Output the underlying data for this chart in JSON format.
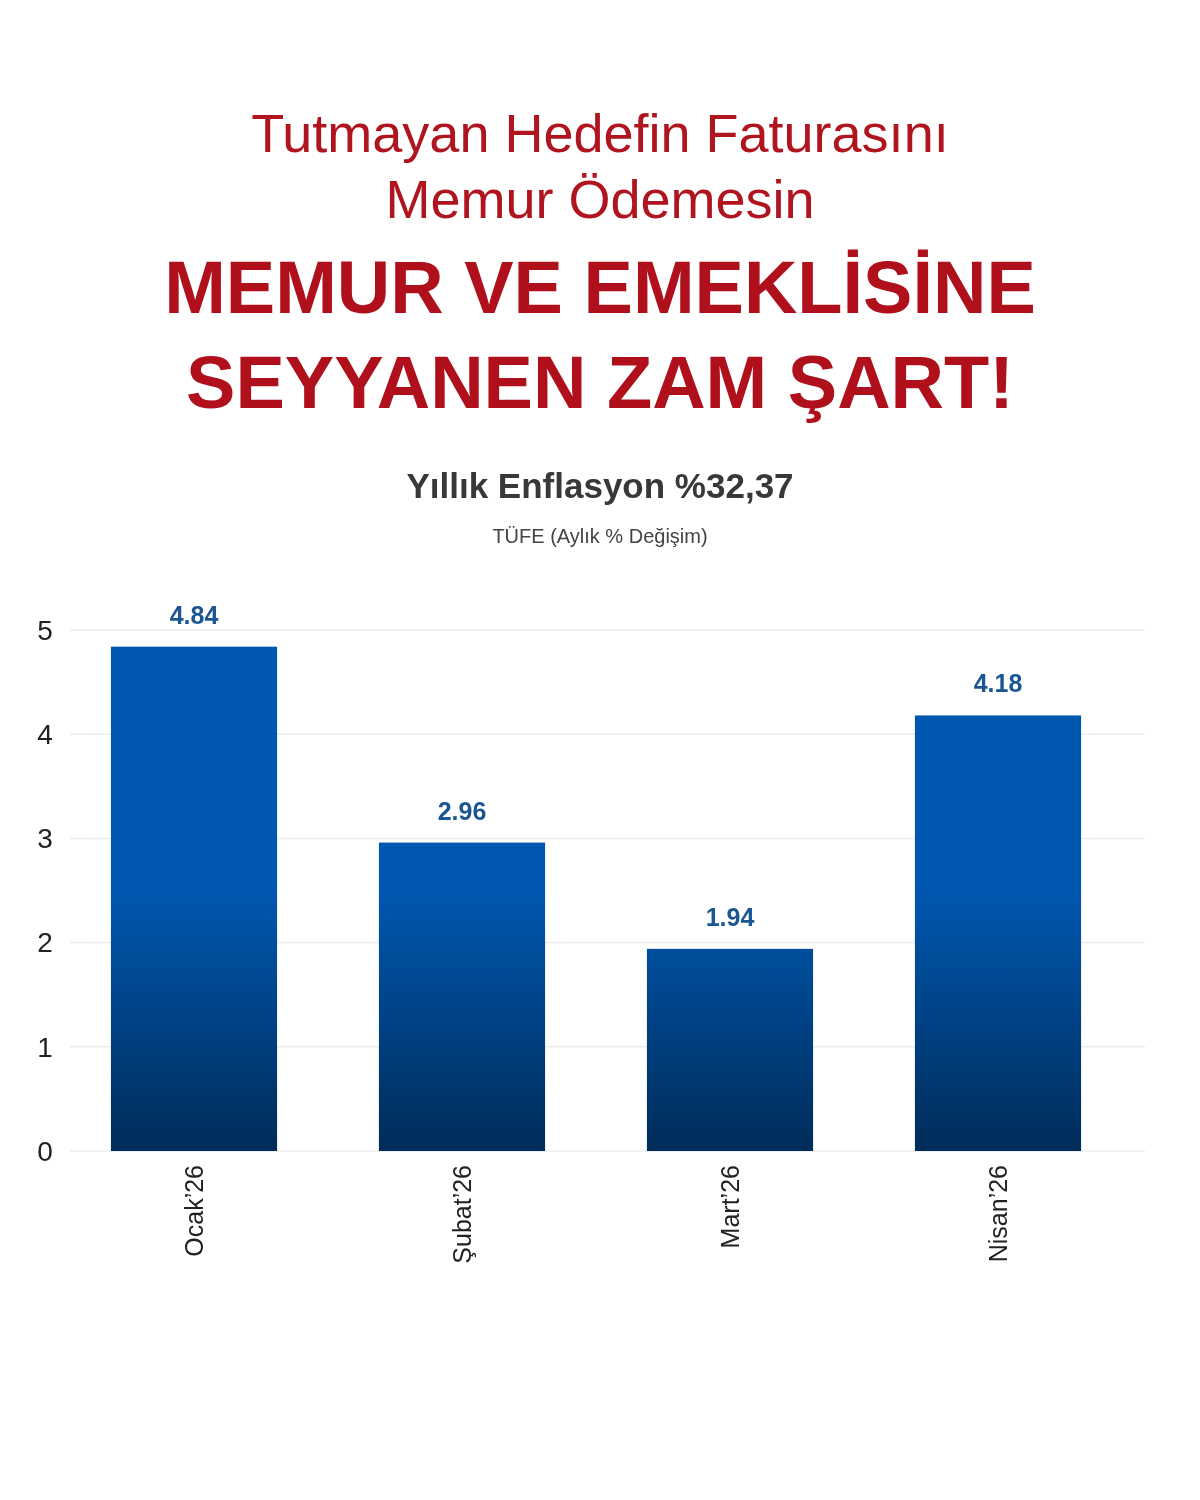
{
  "chart_data": {
    "type": "bar",
    "title": "Yıllık Enflasyon %32,37",
    "subtitle": "TÜFE (Aylık % Değişim)",
    "annotations": [
      "Tutmayan Hedefin Faturasını Memur Ödemesin",
      "MEMUR VE EMEKLİSİNE SEYYANEN ZAM ŞART!"
    ],
    "categories": [
      "Ocak’26",
      "Şubat’26",
      "Mart’26",
      "Nisan’26"
    ],
    "values": [
      4.84,
      2.96,
      1.94,
      4.18
    ],
    "color": "#0057b0",
    "ylim": [
      0,
      5
    ],
    "yticks": [
      0,
      1,
      2,
      3,
      4,
      5
    ],
    "grid": "y",
    "data_labels": true
  }
}
